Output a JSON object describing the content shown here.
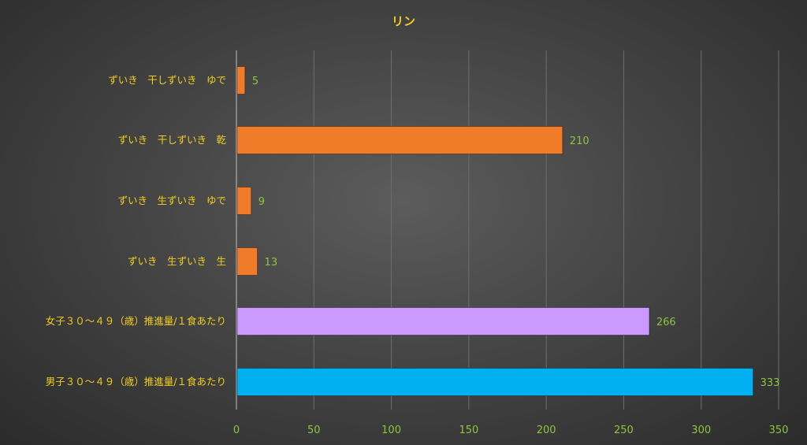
{
  "chart_data": {
    "type": "bar",
    "orientation": "horizontal",
    "title": "リン",
    "categories": [
      "ずいき　干しずいき　ゆで",
      "ずいき　干しずいき　乾",
      "ずいき　生ずいき　ゆで",
      "ずいき　生ずいき　生",
      "女子３０〜４９（歳）推進量/１食あたり",
      "男子３０〜４９（歳）推進量/１食あたり"
    ],
    "values": [
      5,
      210,
      9,
      13,
      266,
      333
    ],
    "bar_colors": [
      "#f07c2a",
      "#f07c2a",
      "#f07c2a",
      "#f07c2a",
      "#cc99ff",
      "#00b0f0"
    ],
    "xlim": [
      0,
      350
    ],
    "xticks": [
      0,
      50,
      100,
      150,
      200,
      250,
      300,
      350
    ],
    "grid": true,
    "data_labels": true,
    "legend": "none",
    "colors": {
      "title": "#f2cf1c",
      "category_labels": "#f2cf1c",
      "tick_labels": "#8cc63f",
      "value_labels": "#8cc63f"
    }
  }
}
